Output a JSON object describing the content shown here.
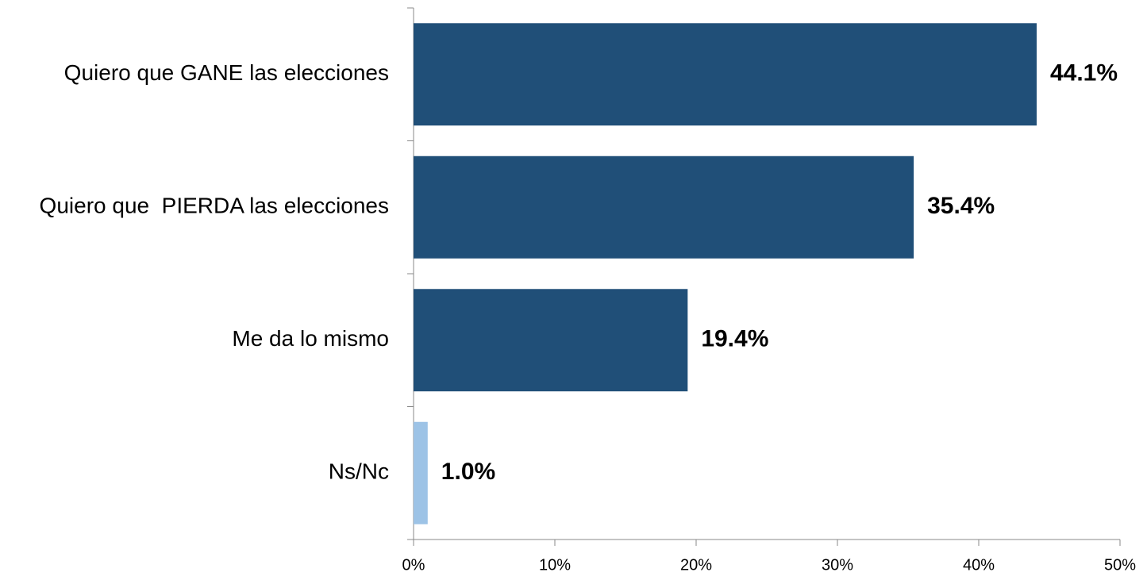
{
  "chart_data": {
    "type": "hbar",
    "categories": [
      "Quiero que GANE las elecciones",
      "Quiero que  PIERDA las elecciones",
      "Me da lo mismo",
      "Ns/Nc"
    ],
    "values": [
      44.1,
      35.4,
      19.4,
      1.0
    ],
    "value_labels": [
      "44.1%",
      "35.4%",
      "19.4%",
      "1.0%"
    ],
    "colors": [
      "#204f78",
      "#204f78",
      "#204f78",
      "#9dc3e6"
    ],
    "xlim": [
      0,
      50
    ],
    "xticks": [
      {
        "value": 0,
        "label": "0%"
      },
      {
        "value": 10,
        "label": "10%"
      },
      {
        "value": 20,
        "label": "20%"
      },
      {
        "value": 30,
        "label": "30%"
      },
      {
        "value": 40,
        "label": "40%"
      },
      {
        "value": 50,
        "label": "50%"
      }
    ],
    "grid": false
  }
}
